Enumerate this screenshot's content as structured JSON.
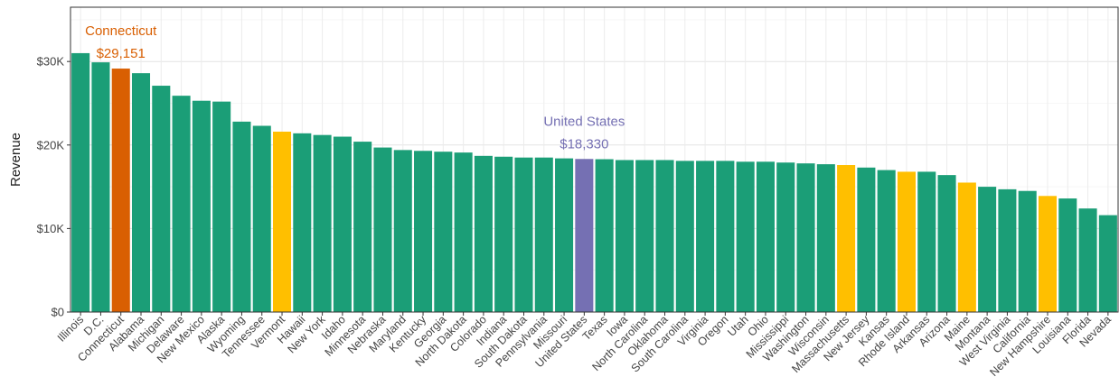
{
  "chart_data": {
    "type": "bar",
    "title": "",
    "xlabel": "",
    "ylabel": "Revenue",
    "ylim": [
      0,
      36500
    ],
    "yticks": [
      0,
      10000,
      20000,
      30000
    ],
    "ytick_labels": [
      "$0",
      "$10K",
      "$20K",
      "$30K"
    ],
    "grid": true,
    "categories": [
      "Illinois",
      "D.C.",
      "Connecticut",
      "Alabama",
      "Michigan",
      "Delaware",
      "New Mexico",
      "Alaska",
      "Wyoming",
      "Tennessee",
      "Vermont",
      "Hawaii",
      "New York",
      "Idaho",
      "Minnesota",
      "Nebraska",
      "Maryland",
      "Kentucky",
      "Georgia",
      "North Dakota",
      "Colorado",
      "Indiana",
      "South Dakota",
      "Pennsylvania",
      "Missouri",
      "United States",
      "Texas",
      "Iowa",
      "North Carolina",
      "Oklahoma",
      "South Carolina",
      "Virginia",
      "Oregon",
      "Utah",
      "Ohio",
      "Mississippi",
      "Washington",
      "Wisconsin",
      "Massachusetts",
      "New Jersey",
      "Kansas",
      "Rhode Island",
      "Arkansas",
      "Arizona",
      "Maine",
      "Montana",
      "West Virginia",
      "California",
      "New Hampshire",
      "Louisiana",
      "Florida",
      "Nevada"
    ],
    "values": [
      31000,
      29900,
      29151,
      28600,
      27100,
      25900,
      25300,
      25200,
      22800,
      22300,
      21600,
      21400,
      21200,
      21000,
      20400,
      19700,
      19400,
      19300,
      19200,
      19100,
      18700,
      18600,
      18500,
      18500,
      18400,
      18330,
      18300,
      18200,
      18200,
      18200,
      18100,
      18100,
      18100,
      18000,
      18000,
      17900,
      17800,
      17700,
      17600,
      17300,
      17000,
      16800,
      16800,
      16400,
      15500,
      15000,
      14700,
      14500,
      13900,
      13600,
      12400,
      11600
    ],
    "colors": {
      "default": "#1b9e77",
      "highlight": "#d95f02",
      "reference": "#7570b3",
      "group": "#ffbf00"
    },
    "highlight_categories": [
      "Connecticut"
    ],
    "reference_categories": [
      "United States"
    ],
    "group_categories": [
      "Vermont",
      "Massachusetts",
      "Rhode Island",
      "Maine",
      "New Hampshire"
    ],
    "annotations": [
      {
        "category": "Connecticut",
        "name": "Connecticut",
        "value_label": "$29,151",
        "color": "#d95f02"
      },
      {
        "category": "United States",
        "name": "United States",
        "value_label": "$18,330",
        "color": "#7570b3"
      }
    ]
  }
}
